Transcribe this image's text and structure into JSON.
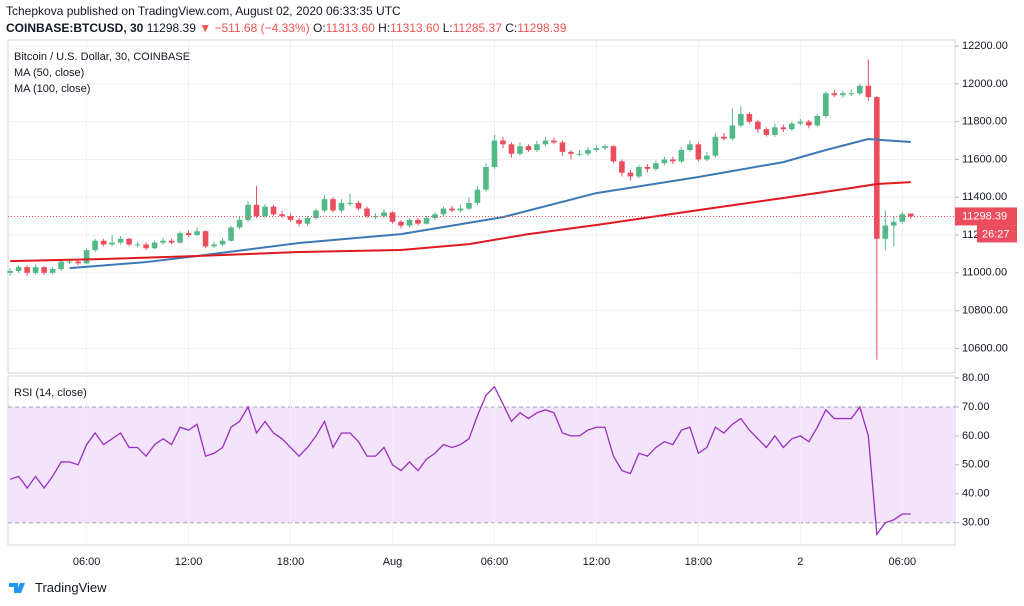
{
  "header": {
    "publisher": "Tchepkova published on TradingView.com, August 02, 2020 06:33:35 UTC",
    "symbol": "COINBASE:BTCUSD, 30",
    "price": "11298.39",
    "arrow": "▼",
    "change": "−511.68 (−4.33%)",
    "open_label": "O:",
    "open": "11313.60",
    "high_label": "H:",
    "high": "11313.60",
    "low_label": "L:",
    "low": "11285.37",
    "close_label": "C:",
    "close": "11298.39"
  },
  "footer": {
    "logo": "TradingView"
  },
  "chart_data": [
    {
      "type": "candlestick",
      "title": "Bitcoin / U.S. Dollar, 30, COINBASE",
      "up_color": "#53b987",
      "down_color": "#eb4d5c",
      "countdown": "26:27",
      "xlim": [
        -0.25,
        111.2
      ],
      "ylim": [
        10470,
        12232
      ],
      "yticks": [
        {
          "value": 10600,
          "label": "10600.00"
        },
        {
          "value": 10800,
          "label": "10800.00"
        },
        {
          "value": 11000,
          "label": "11000.00"
        },
        {
          "value": 11200,
          "label": "11200.00"
        },
        {
          "value": 11400,
          "label": "11400.00"
        },
        {
          "value": 11600,
          "label": "11600.00"
        },
        {
          "value": 11800,
          "label": "11800.00"
        },
        {
          "value": 12000,
          "label": "12000.00"
        },
        {
          "value": 12200,
          "label": "12200.00"
        }
      ],
      "grid": true,
      "candles": [
        [
          11000,
          11025,
          10985,
          11010
        ],
        [
          11010,
          11040,
          11000,
          11030
        ],
        [
          11030,
          11040,
          10985,
          11000
        ],
        [
          11000,
          11045,
          10990,
          11030
        ],
        [
          11030,
          11035,
          10990,
          11000
        ],
        [
          11000,
          11030,
          10990,
          11020
        ],
        [
          11020,
          11070,
          11010,
          11060
        ],
        [
          11060,
          11075,
          11045,
          11060
        ],
        [
          11060,
          11070,
          11040,
          11050
        ],
        [
          11050,
          11130,
          11045,
          11120
        ],
        [
          11120,
          11180,
          11110,
          11170
        ],
        [
          11170,
          11180,
          11140,
          11150
        ],
        [
          11150,
          11200,
          11140,
          11160
        ],
        [
          11160,
          11195,
          11150,
          11180
        ],
        [
          11180,
          11185,
          11140,
          11150
        ],
        [
          11150,
          11165,
          11135,
          11150
        ],
        [
          11150,
          11160,
          11120,
          11130
        ],
        [
          11130,
          11170,
          11125,
          11160
        ],
        [
          11160,
          11185,
          11150,
          11170
        ],
        [
          11170,
          11180,
          11150,
          11160
        ],
        [
          11160,
          11220,
          11155,
          11210
        ],
        [
          11210,
          11225,
          11190,
          11200
        ],
        [
          11200,
          11240,
          11195,
          11220
        ],
        [
          11220,
          11225,
          11130,
          11140
        ],
        [
          11140,
          11165,
          11130,
          11150
        ],
        [
          11150,
          11185,
          11140,
          11170
        ],
        [
          11170,
          11250,
          11165,
          11240
        ],
        [
          11240,
          11300,
          11230,
          11280
        ],
        [
          11280,
          11380,
          11270,
          11360
        ],
        [
          11360,
          11460,
          11290,
          11300
        ],
        [
          11300,
          11365,
          11290,
          11350
        ],
        [
          11350,
          11360,
          11300,
          11310
        ],
        [
          11310,
          11330,
          11290,
          11300
        ],
        [
          11300,
          11315,
          11270,
          11280
        ],
        [
          11280,
          11290,
          11245,
          11260
        ],
        [
          11260,
          11300,
          11250,
          11290
        ],
        [
          11290,
          11340,
          11280,
          11330
        ],
        [
          11330,
          11410,
          11320,
          11390
        ],
        [
          11390,
          11400,
          11320,
          11330
        ],
        [
          11330,
          11390,
          11320,
          11370
        ],
        [
          11370,
          11420,
          11355,
          11370
        ],
        [
          11370,
          11380,
          11330,
          11340
        ],
        [
          11340,
          11350,
          11290,
          11300
        ],
        [
          11300,
          11315,
          11285,
          11300
        ],
        [
          11300,
          11335,
          11290,
          11320
        ],
        [
          11320,
          11325,
          11260,
          11270
        ],
        [
          11270,
          11280,
          11235,
          11250
        ],
        [
          11250,
          11290,
          11240,
          11280
        ],
        [
          11280,
          11290,
          11250,
          11260
        ],
        [
          11260,
          11300,
          11255,
          11290
        ],
        [
          11290,
          11320,
          11280,
          11310
        ],
        [
          11310,
          11350,
          11300,
          11340
        ],
        [
          11340,
          11355,
          11320,
          11330
        ],
        [
          11330,
          11360,
          11320,
          11340
        ],
        [
          11340,
          11400,
          11330,
          11370
        ],
        [
          11370,
          11460,
          11360,
          11440
        ],
        [
          11440,
          11580,
          11430,
          11560
        ],
        [
          11560,
          11730,
          11550,
          11700
        ],
        [
          11700,
          11720,
          11660,
          11680
        ],
        [
          11680,
          11690,
          11610,
          11630
        ],
        [
          11630,
          11690,
          11620,
          11670
        ],
        [
          11670,
          11680,
          11640,
          11650
        ],
        [
          11650,
          11700,
          11640,
          11680
        ],
        [
          11680,
          11720,
          11670,
          11700
        ],
        [
          11700,
          11715,
          11680,
          11690
        ],
        [
          11690,
          11700,
          11620,
          11640
        ],
        [
          11640,
          11650,
          11600,
          11630
        ],
        [
          11630,
          11650,
          11615,
          11630
        ],
        [
          11630,
          11665,
          11620,
          11650
        ],
        [
          11650,
          11675,
          11640,
          11660
        ],
        [
          11660,
          11680,
          11650,
          11670
        ],
        [
          11670,
          11675,
          11580,
          11590
        ],
        [
          11590,
          11600,
          11510,
          11530
        ],
        [
          11530,
          11545,
          11490,
          11510
        ],
        [
          11510,
          11570,
          11500,
          11560
        ],
        [
          11560,
          11575,
          11530,
          11550
        ],
        [
          11550,
          11595,
          11540,
          11580
        ],
        [
          11580,
          11615,
          11570,
          11600
        ],
        [
          11600,
          11615,
          11575,
          11590
        ],
        [
          11590,
          11665,
          11580,
          11650
        ],
        [
          11650,
          11700,
          11640,
          11680
        ],
        [
          11680,
          11690,
          11590,
          11600
        ],
        [
          11600,
          11640,
          11590,
          11620
        ],
        [
          11620,
          11740,
          11610,
          11720
        ],
        [
          11720,
          11740,
          11700,
          11710
        ],
        [
          11710,
          11870,
          11700,
          11780
        ],
        [
          11780,
          11880,
          11770,
          11840
        ],
        [
          11840,
          11850,
          11790,
          11800
        ],
        [
          11800,
          11810,
          11740,
          11760
        ],
        [
          11760,
          11770,
          11720,
          11730
        ],
        [
          11730,
          11790,
          11720,
          11770
        ],
        [
          11770,
          11785,
          11745,
          11760
        ],
        [
          11760,
          11800,
          11750,
          11790
        ],
        [
          11790,
          11815,
          11780,
          11800
        ],
        [
          11800,
          11810,
          11765,
          11780
        ],
        [
          11780,
          11840,
          11770,
          11830
        ],
        [
          11830,
          11960,
          11820,
          11950
        ],
        [
          11950,
          11970,
          11930,
          11940
        ],
        [
          11940,
          11965,
          11925,
          11950
        ],
        [
          11950,
          11970,
          11935,
          11950
        ],
        [
          11950,
          12000,
          11940,
          11990
        ],
        [
          11990,
          12130,
          11910,
          11930
        ],
        [
          11930,
          11935,
          10540,
          11180
        ],
        [
          11180,
          11330,
          11120,
          11250
        ],
        [
          11250,
          11300,
          11140,
          11270
        ],
        [
          11270,
          11320,
          11260,
          11310
        ],
        [
          11313.6,
          11313.6,
          11285.37,
          11298.39
        ]
      ],
      "series": [
        {
          "name": "MA (50, close)",
          "color": "#3c78b4",
          "x": [
            7,
            16,
            22,
            34,
            46,
            58,
            69,
            81,
            91,
            96,
            101,
            106
          ],
          "values": [
            11025,
            11057,
            11089,
            11158,
            11205,
            11295,
            11422,
            11507,
            11586,
            11650,
            11708,
            11692
          ]
        },
        {
          "name": "MA (100, close)",
          "color": "#e0191f",
          "x": [
            0,
            11,
            22,
            34,
            46,
            54,
            61,
            69,
            81,
            91,
            99,
            102,
            106
          ],
          "values": [
            11062,
            11073,
            11089,
            11110,
            11121,
            11152,
            11205,
            11253,
            11332,
            11396,
            11449,
            11470,
            11480
          ]
        }
      ]
    },
    {
      "type": "line",
      "title": "RSI (14, close)",
      "color": "#9b2fbf",
      "band": [
        30,
        70
      ],
      "band_color": "#f3e3fb",
      "xlim": [
        -0.25,
        111.2
      ],
      "ylim": [
        22.3,
        80.7
      ],
      "yticks": [
        {
          "value": 30,
          "label": "30.00"
        },
        {
          "value": 40,
          "label": "40.00"
        },
        {
          "value": 50,
          "label": "50.00"
        },
        {
          "value": 60,
          "label": "60.00"
        },
        {
          "value": 70,
          "label": "70.00"
        },
        {
          "value": 80,
          "label": "80.00"
        }
      ],
      "xticks": [
        {
          "value": 9,
          "label": "06:00"
        },
        {
          "value": 21,
          "label": "12:00"
        },
        {
          "value": 33,
          "label": "18:00"
        },
        {
          "value": 45,
          "label": "Aug"
        },
        {
          "value": 57,
          "label": "06:00"
        },
        {
          "value": 69,
          "label": "12:00"
        },
        {
          "value": 81,
          "label": "18:00"
        },
        {
          "value": 93,
          "label": "2"
        },
        {
          "value": 105,
          "label": "06:00"
        }
      ],
      "values": [
        45,
        46,
        42,
        46,
        42,
        46,
        51,
        51,
        50,
        57,
        61,
        57,
        59,
        61,
        56,
        56,
        53,
        57,
        59,
        57,
        63,
        62,
        64,
        53,
        54,
        56,
        63,
        65,
        70,
        61,
        65,
        61,
        59,
        56,
        53,
        56,
        60,
        65,
        56,
        61,
        61,
        58,
        53,
        53,
        56,
        50,
        48,
        51,
        48,
        52,
        54,
        57,
        56,
        57,
        59,
        67,
        74,
        77,
        71,
        65,
        68,
        66,
        68,
        69,
        68,
        61,
        60,
        60,
        62,
        63,
        63,
        53,
        48,
        47,
        54,
        53,
        56,
        58,
        57,
        62,
        63,
        54,
        56,
        63,
        61,
        64,
        66,
        62,
        59,
        56,
        60,
        56,
        59,
        60,
        58,
        63,
        69,
        66,
        66,
        66,
        70,
        60,
        26,
        30,
        31,
        33,
        33
      ]
    }
  ]
}
